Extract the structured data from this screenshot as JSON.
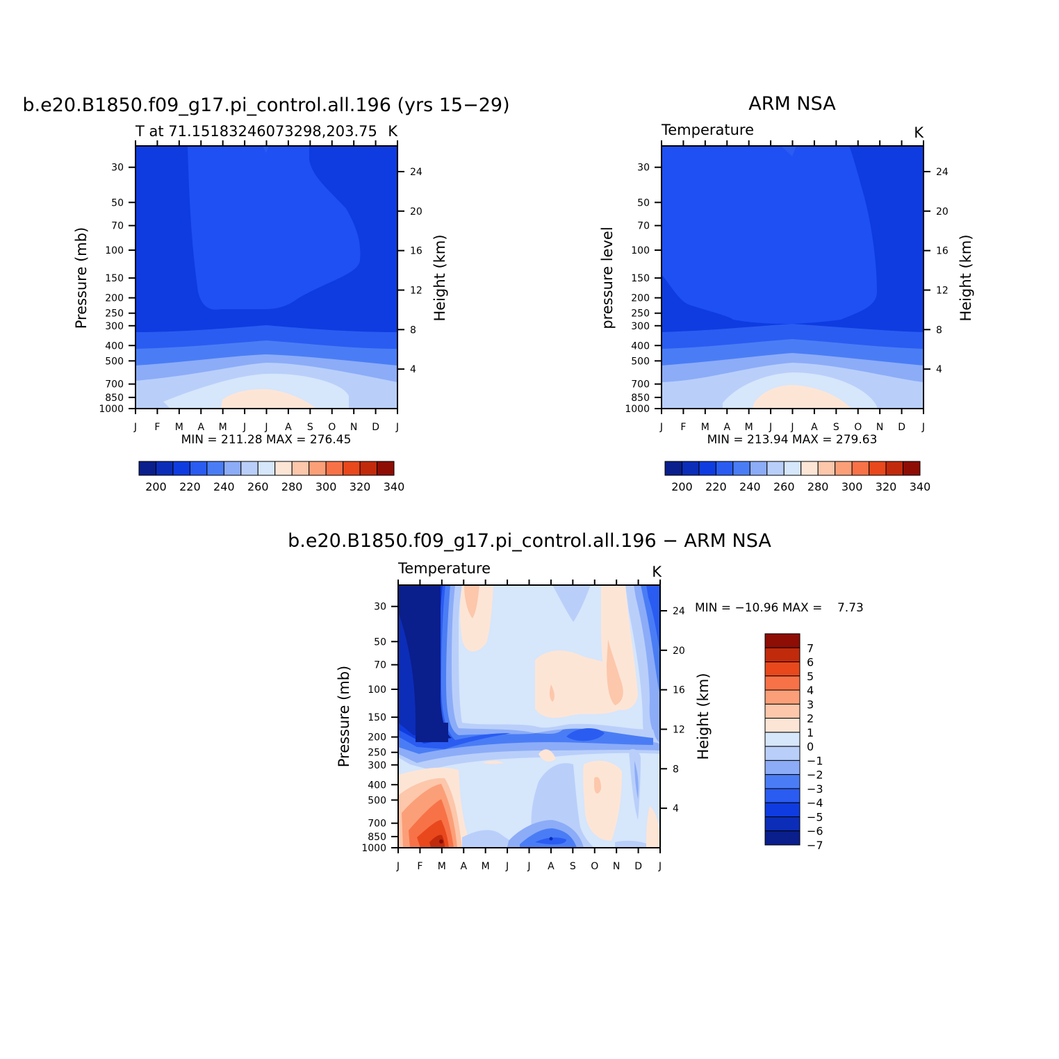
{
  "chart_data": [
    {
      "type": "heatmap",
      "title": "b.e20.B1850.f09_g17.pi_control.all.196 (yrs 15−29)",
      "subtitle_left": "T at 71.15183246073298,203.75",
      "subtitle_right": "K",
      "ylabel": "Pressure (mb)",
      "ylabel_right": "Height (km)",
      "x": [
        "J",
        "F",
        "M",
        "A",
        "M",
        "J",
        "J",
        "A",
        "S",
        "O",
        "N",
        "D",
        "J"
      ],
      "y_pressure_ticks": [
        30,
        50,
        70,
        100,
        150,
        200,
        250,
        300,
        400,
        500,
        700,
        850,
        1000
      ],
      "y_height_ticks": [
        24,
        20,
        16,
        12,
        8,
        4
      ],
      "min_max_text": "MIN = 211.28 MAX = 276.45",
      "colorbar": {
        "orientation": "horizontal",
        "ticks": [
          200,
          220,
          240,
          260,
          280,
          300,
          320,
          340
        ],
        "colors": [
          "#0a1e8c",
          "#0c2db8",
          "#0f3ce0",
          "#2a5cf2",
          "#4a7df5",
          "#8cacf8",
          "#b9cffa",
          "#d6e6fb",
          "#fde5d6",
          "#fcc7ab",
          "#fb9f78",
          "#f87248",
          "#e8481c",
          "#c22a0c",
          "#8e0d05"
        ]
      },
      "range": [
        211.28,
        276.45
      ]
    },
    {
      "type": "heatmap",
      "title": "ARM NSA",
      "subtitle_left": "Temperature",
      "subtitle_right": "K",
      "ylabel": "pressure level",
      "ylabel_right": "Height (km)",
      "x": [
        "J",
        "F",
        "M",
        "A",
        "M",
        "J",
        "J",
        "A",
        "S",
        "O",
        "N",
        "D",
        "J"
      ],
      "y_pressure_ticks": [
        30,
        50,
        70,
        100,
        150,
        200,
        250,
        300,
        400,
        500,
        700,
        850,
        1000
      ],
      "y_height_ticks": [
        24,
        20,
        16,
        12,
        8,
        4
      ],
      "min_max_text": "MIN = 213.94 MAX = 279.63",
      "colorbar": {
        "orientation": "horizontal",
        "ticks": [
          200,
          220,
          240,
          260,
          280,
          300,
          320,
          340
        ],
        "colors": [
          "#0a1e8c",
          "#0c2db8",
          "#0f3ce0",
          "#2a5cf2",
          "#4a7df5",
          "#8cacf8",
          "#b9cffa",
          "#d6e6fb",
          "#fde5d6",
          "#fcc7ab",
          "#fb9f78",
          "#f87248",
          "#e8481c",
          "#c22a0c",
          "#8e0d05"
        ]
      },
      "range": [
        213.94,
        279.63
      ]
    },
    {
      "type": "heatmap",
      "title": "b.e20.B1850.f09_g17.pi_control.all.196 − ARM NSA",
      "subtitle_left": "Temperature",
      "subtitle_right": "K",
      "ylabel": "Pressure (mb)",
      "ylabel_right": "Height (km)",
      "x": [
        "J",
        "F",
        "M",
        "A",
        "M",
        "J",
        "J",
        "A",
        "S",
        "O",
        "N",
        "D",
        "J"
      ],
      "y_pressure_ticks": [
        30,
        50,
        70,
        100,
        150,
        200,
        250,
        300,
        400,
        500,
        700,
        850,
        1000
      ],
      "y_height_ticks": [
        24,
        20,
        16,
        12,
        8,
        4
      ],
      "min_max_text": "MIN = −10.96 MAX =    7.73",
      "colorbar": {
        "orientation": "vertical",
        "ticks": [
          "7",
          "6",
          "5",
          "4",
          "3",
          "2",
          "1",
          "0",
          "−1",
          "−2",
          "−3",
          "−4",
          "−5",
          "−6",
          "−7"
        ],
        "colors": [
          "#8e0d05",
          "#c22a0c",
          "#e8481c",
          "#f87248",
          "#fb9f78",
          "#fcc7ab",
          "#fde5d6",
          "#d6e6fb",
          "#b9cffa",
          "#8cacf8",
          "#4a7df5",
          "#2a5cf2",
          "#0f3ce0",
          "#0c2db8",
          "#0a1e8c"
        ]
      },
      "range": [
        -10.96,
        7.73
      ]
    }
  ]
}
